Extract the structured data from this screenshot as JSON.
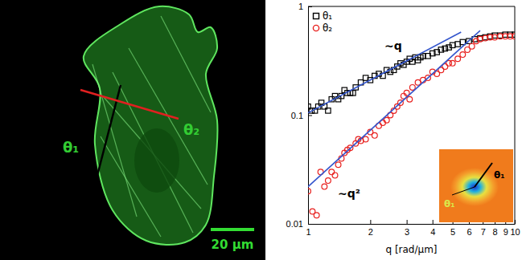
{
  "chart_data": {
    "type": "scatter",
    "xlabel": "q [rad/μm]",
    "log": true,
    "xlim": [
      1,
      10
    ],
    "ylim": [
      0.01,
      1
    ],
    "xticks": [
      1,
      2,
      3,
      4,
      5,
      6,
      7,
      8,
      9,
      10
    ],
    "yticks": [
      0.01,
      0.1,
      1
    ],
    "legend": "upper left",
    "annotations": [
      "~q",
      "~q²"
    ],
    "series": [
      {
        "name": "θ₁",
        "color": "#000000",
        "marker": "square",
        "x": [
          1.0,
          1.04,
          1.08,
          1.12,
          1.16,
          1.2,
          1.25,
          1.3,
          1.35,
          1.4,
          1.45,
          1.5,
          1.55,
          1.6,
          1.65,
          1.7,
          1.8,
          1.9,
          2.0,
          2.1,
          2.2,
          2.3,
          2.4,
          2.5,
          2.6,
          2.7,
          2.8,
          2.9,
          3.0,
          3.1,
          3.2,
          3.3,
          3.4,
          3.5,
          3.6,
          3.8,
          4.0,
          4.2,
          4.4,
          4.6,
          4.8,
          5.0,
          5.3,
          5.6,
          6.0,
          6.4,
          6.8,
          7.2,
          7.6,
          8.0,
          8.5,
          9.0,
          9.5,
          10.0
        ],
        "values": [
          0.12,
          0.11,
          0.11,
          0.12,
          0.13,
          0.12,
          0.11,
          0.14,
          0.15,
          0.14,
          0.15,
          0.17,
          0.16,
          0.16,
          0.16,
          0.18,
          0.2,
          0.22,
          0.21,
          0.23,
          0.24,
          0.23,
          0.26,
          0.25,
          0.26,
          0.28,
          0.3,
          0.29,
          0.31,
          0.33,
          0.31,
          0.34,
          0.32,
          0.34,
          0.35,
          0.35,
          0.37,
          0.38,
          0.4,
          0.41,
          0.42,
          0.44,
          0.45,
          0.47,
          0.48,
          0.5,
          0.51,
          0.52,
          0.53,
          0.54,
          0.54,
          0.55,
          0.55,
          0.55
        ]
      },
      {
        "name": "θ₂",
        "color": "#e8201e",
        "marker": "circle",
        "x": [
          1.0,
          1.05,
          1.1,
          1.15,
          1.2,
          1.25,
          1.3,
          1.35,
          1.4,
          1.45,
          1.5,
          1.55,
          1.6,
          1.7,
          1.75,
          1.8,
          1.9,
          2.0,
          2.1,
          2.2,
          2.3,
          2.4,
          2.5,
          2.6,
          2.7,
          2.8,
          2.9,
          3.0,
          3.1,
          3.2,
          3.4,
          3.6,
          3.8,
          4.0,
          4.2,
          4.4,
          4.6,
          4.8,
          5.0,
          5.3,
          5.6,
          5.9,
          6.2,
          6.5,
          6.8,
          7.2,
          7.6,
          8.0,
          8.5,
          9.0,
          9.5,
          10.0
        ],
        "values": [
          0.02,
          0.013,
          0.012,
          0.03,
          0.022,
          0.025,
          0.03,
          0.028,
          0.035,
          0.04,
          0.045,
          0.048,
          0.05,
          0.055,
          0.06,
          0.058,
          0.06,
          0.07,
          0.065,
          0.08,
          0.085,
          0.09,
          0.1,
          0.11,
          0.12,
          0.13,
          0.15,
          0.16,
          0.14,
          0.18,
          0.2,
          0.21,
          0.22,
          0.25,
          0.24,
          0.26,
          0.28,
          0.3,
          0.3,
          0.33,
          0.36,
          0.4,
          0.43,
          0.48,
          0.5,
          0.51,
          0.52,
          0.52,
          0.53,
          0.53,
          0.53,
          0.53
        ]
      },
      {
        "type": "line",
        "color": "#3355cc",
        "line_style": "solid",
        "x": [
          1.0,
          5.5
        ],
        "values": [
          0.105,
          0.58
        ]
      },
      {
        "type": "line",
        "color": "#3355cc",
        "line_style": "solid",
        "x": [
          1.0,
          6.8
        ],
        "values": [
          0.022,
          0.6
        ]
      }
    ]
  },
  "image": {
    "labels": [
      "θ₁",
      "θ₂"
    ],
    "scale_bar": "20 μm",
    "inset_labels": [
      "θ₁",
      "θ₁"
    ]
  }
}
